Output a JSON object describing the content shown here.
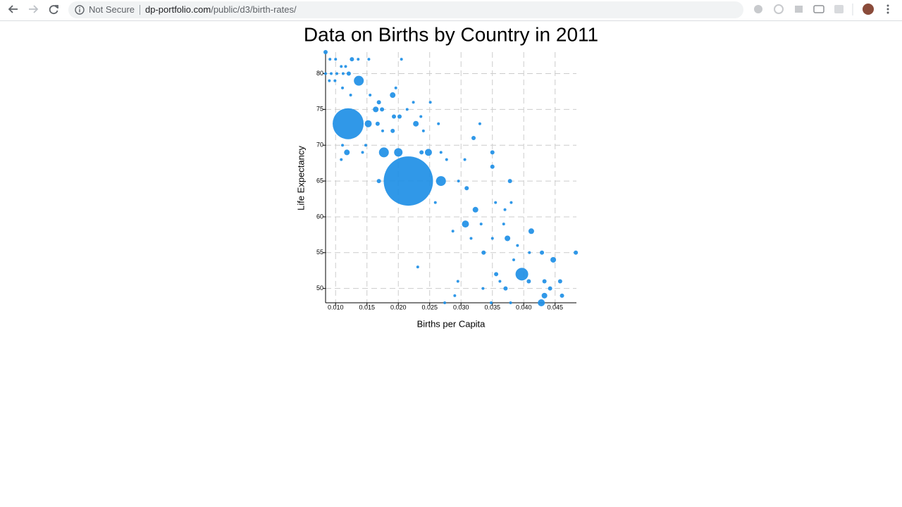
{
  "browser": {
    "security": "Not Secure",
    "url_host": "dp-portfolio.com",
    "url_path": "/public/d3/birth-rates/"
  },
  "chart_data": {
    "type": "scatter",
    "title": "Data on Births by Country in 2011",
    "xlabel": "Births per Capita",
    "ylabel": "Life Expectancy",
    "color": "#1e8fe6",
    "grid": true,
    "xlim": [
      0.0084,
      0.0484
    ],
    "ylim": [
      48,
      83
    ],
    "xticks": [
      {
        "value": 0.01,
        "label": "0.010"
      },
      {
        "value": 0.015,
        "label": "0.015"
      },
      {
        "value": 0.02,
        "label": "0.020"
      },
      {
        "value": 0.025,
        "label": "0.025"
      },
      {
        "value": 0.03,
        "label": "0.030"
      },
      {
        "value": 0.035,
        "label": "0.035"
      },
      {
        "value": 0.04,
        "label": "0.040"
      },
      {
        "value": 0.045,
        "label": "0.045"
      }
    ],
    "yticks": [
      50,
      55,
      60,
      65,
      70,
      75,
      80
    ],
    "x": [
      0.0084,
      0.0091,
      0.01,
      0.0109,
      0.0116,
      0.0126,
      0.0136,
      0.0153,
      0.0205,
      0.0084,
      0.0093,
      0.0102,
      0.0112,
      0.0121,
      0.0137,
      0.009,
      0.0099,
      0.0111,
      0.0124,
      0.0155,
      0.0191,
      0.0196,
      0.0169,
      0.0224,
      0.0251,
      0.0164,
      0.0174,
      0.0214,
      0.012,
      0.0152,
      0.0167,
      0.0228,
      0.0193,
      0.0202,
      0.0236,
      0.0175,
      0.0191,
      0.024,
      0.0264,
      0.032,
      0.033,
      0.0111,
      0.0148,
      0.0118,
      0.0143,
      0.0177,
      0.02,
      0.0248,
      0.0237,
      0.035,
      0.0268,
      0.0109,
      0.0277,
      0.0306,
      0.035,
      0.0216,
      0.0268,
      0.0169,
      0.0296,
      0.0378,
      0.0309,
      0.0259,
      0.0323,
      0.0355,
      0.037,
      0.038,
      0.0307,
      0.0332,
      0.0287,
      0.0368,
      0.0412,
      0.0316,
      0.0374,
      0.039,
      0.0336,
      0.035,
      0.0409,
      0.0429,
      0.0483,
      0.0447,
      0.0384,
      0.0231,
      0.0397,
      0.0356,
      0.0408,
      0.0295,
      0.0362,
      0.0458,
      0.0433,
      0.0335,
      0.0371,
      0.0442,
      0.029,
      0.0433,
      0.0461,
      0.0428,
      0.0274,
      0.0379,
      0.0348
    ],
    "y": [
      83,
      82,
      82,
      81,
      81,
      82,
      82,
      82,
      82,
      80,
      80,
      80,
      80,
      80,
      79,
      79,
      79,
      78,
      77,
      77,
      77,
      78,
      76,
      76,
      76,
      75,
      75,
      75,
      73,
      73,
      73,
      73,
      74,
      74,
      74,
      72,
      72,
      72,
      73,
      71,
      73,
      70,
      70,
      69,
      69,
      69,
      69,
      69,
      69,
      69,
      69,
      68,
      68,
      68,
      67,
      65,
      65,
      65,
      65,
      65,
      64,
      62,
      61,
      62,
      61,
      62,
      59,
      59,
      58,
      59,
      58,
      57,
      57,
      56,
      55,
      57,
      55,
      55,
      55,
      54,
      54,
      53,
      52,
      52,
      51,
      51,
      51,
      51,
      51,
      50,
      50,
      50,
      49,
      49,
      49,
      48,
      48,
      48,
      48
    ],
    "sizes": [
      9,
      4,
      4,
      4,
      4,
      9,
      4,
      4,
      4,
      4,
      4,
      4,
      4,
      9,
      49,
      4,
      4,
      4,
      4,
      4,
      16,
      4,
      9,
      4,
      4,
      16,
      9,
      4,
      484,
      25,
      9,
      16,
      9,
      9,
      4,
      4,
      9,
      4,
      4,
      9,
      4,
      4,
      4,
      16,
      4,
      49,
      36,
      25,
      9,
      9,
      4,
      4,
      4,
      4,
      9,
      1225,
      49,
      9,
      4,
      9,
      9,
      4,
      16,
      4,
      4,
      4,
      25,
      4,
      4,
      4,
      16,
      4,
      16,
      4,
      9,
      4,
      4,
      9,
      9,
      16,
      4,
      4,
      81,
      9,
      9,
      4,
      4,
      9,
      9,
      4,
      9,
      9,
      4,
      16,
      9,
      25,
      4,
      4,
      4
    ]
  }
}
